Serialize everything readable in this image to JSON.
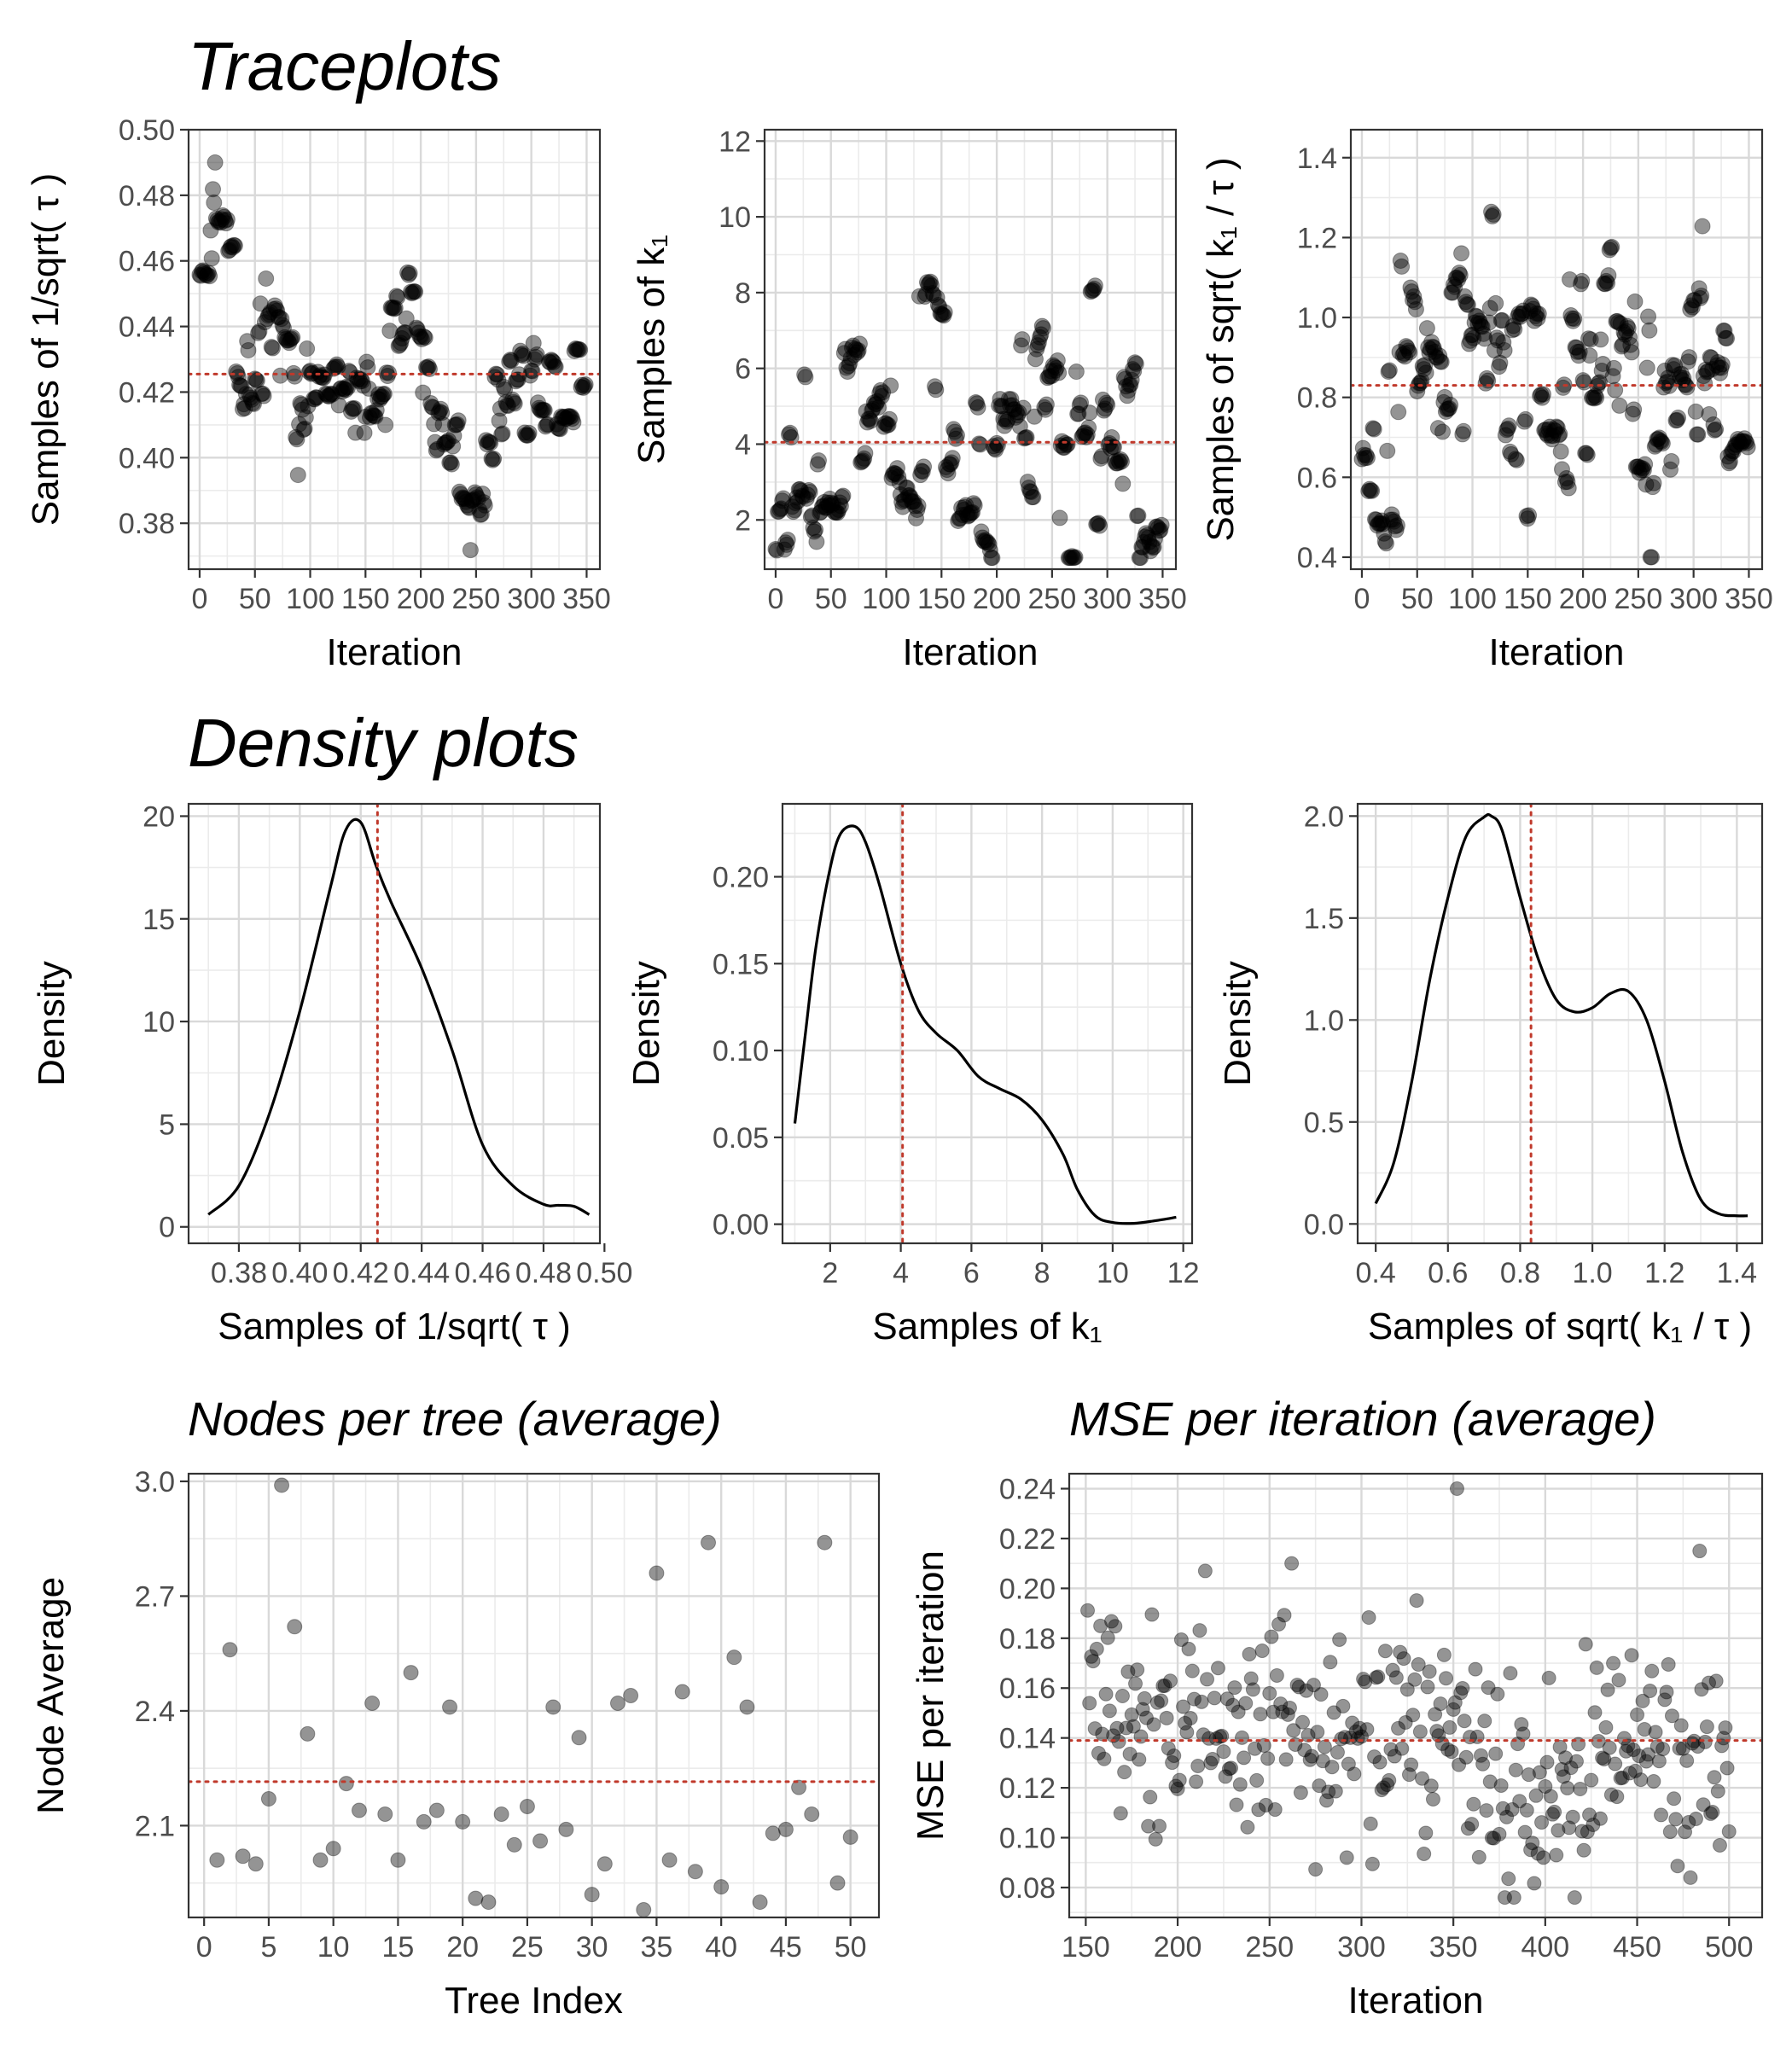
{
  "sections": {
    "traceplots": "Traceplots",
    "density": "Density plots"
  },
  "colors": {
    "ref_line": "#c0392b",
    "points": "#000000",
    "grid_major": "#d9d9d9",
    "grid_minor": "#ebebeb",
    "panel_border": "#333333"
  },
  "chart_data": [
    {
      "id": "trace1",
      "type": "scatter",
      "subtitle": "",
      "xlabel": "Iteration",
      "ylabel": "Samples of 1/sqrt( τ )",
      "xlim": [
        -10,
        362
      ],
      "ylim": [
        0.366,
        0.5
      ],
      "xticks": [
        0,
        50,
        100,
        150,
        200,
        250,
        300,
        350
      ],
      "xtick_labels": [
        "0",
        "50",
        "100",
        "150",
        "200",
        "250",
        "300",
        "350"
      ],
      "yticks": [
        0.38,
        0.4,
        0.42,
        0.44,
        0.46,
        0.48,
        0.5
      ],
      "ytick_labels": [
        "0.38",
        "0.40",
        "0.42",
        "0.44",
        "0.46",
        "0.48",
        "0.50"
      ],
      "ref_y": 0.4255,
      "series_gen": {
        "n": 350,
        "seed": 11,
        "anchors": [
          [
            0,
            0.458
          ],
          [
            10,
            0.47
          ],
          [
            15,
            0.488
          ],
          [
            25,
            0.465
          ],
          [
            35,
            0.43
          ],
          [
            50,
            0.424
          ],
          [
            70,
            0.447
          ],
          [
            90,
            0.41
          ],
          [
            110,
            0.432
          ],
          [
            130,
            0.425
          ],
          [
            150,
            0.415
          ],
          [
            170,
            0.43
          ],
          [
            190,
            0.452
          ],
          [
            210,
            0.404
          ],
          [
            230,
            0.408
          ],
          [
            245,
            0.38
          ],
          [
            260,
            0.398
          ],
          [
            280,
            0.424
          ],
          [
            300,
            0.427
          ],
          [
            330,
            0.412
          ],
          [
            350,
            0.425
          ]
        ],
        "noise": 0.008,
        "hold": 0.65,
        "min": 0.37,
        "max": 0.495
      }
    },
    {
      "id": "trace2",
      "type": "scatter",
      "xlabel": "Iteration",
      "ylabel": "Samples of k₁",
      "xlim": [
        -10,
        362
      ],
      "ylim": [
        0.7,
        12.3
      ],
      "xticks": [
        0,
        50,
        100,
        150,
        200,
        250,
        300,
        350
      ],
      "xtick_labels": [
        "0",
        "50",
        "100",
        "150",
        "200",
        "250",
        "300",
        "350"
      ],
      "yticks": [
        2,
        4,
        6,
        8,
        10,
        12
      ],
      "ytick_labels": [
        "2",
        "4",
        "6",
        "8",
        "10",
        "12"
      ],
      "ref_y": 4.05,
      "series_gen": {
        "n": 350,
        "seed": 23,
        "anchors": [
          [
            0,
            3
          ],
          [
            20,
            1.5
          ],
          [
            40,
            4.2
          ],
          [
            60,
            6
          ],
          [
            80,
            3.8
          ],
          [
            100,
            5.5
          ],
          [
            120,
            4
          ],
          [
            140,
            5.2
          ],
          [
            160,
            3
          ],
          [
            180,
            2.6
          ],
          [
            200,
            3.5
          ],
          [
            220,
            4.6
          ],
          [
            240,
            5.2
          ],
          [
            260,
            3
          ],
          [
            280,
            4.5
          ],
          [
            300,
            3.5
          ],
          [
            320,
            3.5
          ],
          [
            350,
            2.8
          ]
        ],
        "noise": 1.6,
        "hold": 0.8,
        "min": 1.0,
        "max": 11.8
      }
    },
    {
      "id": "trace3",
      "type": "scatter",
      "xlabel": "Iteration",
      "ylabel": "Samples of sqrt( k₁ / τ )",
      "xlim": [
        -10,
        362
      ],
      "ylim": [
        0.37,
        1.47
      ],
      "xticks": [
        0,
        50,
        100,
        150,
        200,
        250,
        300,
        350
      ],
      "xtick_labels": [
        "0",
        "50",
        "100",
        "150",
        "200",
        "250",
        "300",
        "350"
      ],
      "yticks": [
        0.4,
        0.6,
        0.8,
        1.0,
        1.2,
        1.4
      ],
      "ytick_labels": [
        "0.4",
        "0.6",
        "0.8",
        "1.0",
        "1.2",
        "1.4"
      ],
      "ref_y": 0.83,
      "series_gen": {
        "n": 350,
        "seed": 37,
        "anchors": [
          [
            0,
            0.8
          ],
          [
            20,
            0.6
          ],
          [
            40,
            1.05
          ],
          [
            60,
            0.7
          ],
          [
            80,
            1.05
          ],
          [
            100,
            0.85
          ],
          [
            120,
            1.0
          ],
          [
            140,
            0.75
          ],
          [
            160,
            0.85
          ],
          [
            180,
            0.7
          ],
          [
            200,
            0.85
          ],
          [
            220,
            0.95
          ],
          [
            240,
            1.0
          ],
          [
            260,
            0.7
          ],
          [
            280,
            0.8
          ],
          [
            300,
            0.95
          ],
          [
            320,
            0.85
          ],
          [
            340,
            0.7
          ],
          [
            350,
            0.75
          ]
        ],
        "noise": 0.14,
        "hold": 0.7,
        "min": 0.4,
        "max": 1.42
      }
    },
    {
      "id": "dens1",
      "type": "line",
      "xlabel": "Samples of 1/sqrt( τ )",
      "ylabel": "Density",
      "xlim": [
        0.3635,
        0.4985
      ],
      "ylim": [
        -0.8,
        20.6
      ],
      "xticks": [
        0.38,
        0.4,
        0.42,
        0.44,
        0.46,
        0.48,
        0.5
      ],
      "xtick_labels": [
        "0.38",
        "0.40",
        "0.42",
        "0.44",
        "0.46",
        "0.48",
        "0.50"
      ],
      "yticks": [
        0,
        5,
        10,
        15,
        20
      ],
      "ytick_labels": [
        "0",
        "5",
        "10",
        "15",
        "20"
      ],
      "ref_x": 0.4255,
      "x": [
        0.37,
        0.38,
        0.39,
        0.4,
        0.41,
        0.415,
        0.42,
        0.425,
        0.43,
        0.44,
        0.45,
        0.46,
        0.47,
        0.48,
        0.485,
        0.49,
        0.495
      ],
      "y": [
        0.6,
        2.0,
        5.5,
        10.5,
        16.5,
        19.3,
        19.7,
        17.6,
        15.8,
        12.6,
        8.6,
        4.0,
        2.0,
        1.1,
        1.05,
        1.0,
        0.6
      ]
    },
    {
      "id": "dens2",
      "type": "line",
      "xlabel": "Samples of  k₁",
      "ylabel": "Density",
      "xlim": [
        0.65,
        12.25
      ],
      "ylim": [
        -0.011,
        0.242
      ],
      "xticks": [
        2,
        4,
        6,
        8,
        10,
        12
      ],
      "xtick_labels": [
        "2",
        "4",
        "6",
        "8",
        "10",
        "12"
      ],
      "yticks": [
        0,
        0.05,
        0.1,
        0.15,
        0.2
      ],
      "ytick_labels": [
        "0.00",
        "0.05",
        "0.10",
        "0.15",
        "0.20"
      ],
      "ref_x": 4.05,
      "x": [
        1.0,
        1.3,
        1.6,
        2.0,
        2.3,
        2.7,
        3.0,
        3.4,
        4.0,
        4.5,
        5.0,
        5.6,
        6.2,
        6.8,
        7.4,
        8.0,
        8.6,
        9.0,
        9.5,
        10.0,
        10.6,
        11.2,
        11.8
      ],
      "y": [
        0.058,
        0.11,
        0.16,
        0.205,
        0.225,
        0.229,
        0.22,
        0.195,
        0.15,
        0.123,
        0.11,
        0.1,
        0.085,
        0.078,
        0.072,
        0.06,
        0.04,
        0.02,
        0.005,
        0.001,
        0.0005,
        0.002,
        0.004
      ]
    },
    {
      "id": "dens3",
      "type": "line",
      "xlabel": "Samples of sqrt( k₁ / τ )",
      "ylabel": "Density",
      "xlim": [
        0.35,
        1.47
      ],
      "ylim": [
        -0.095,
        2.06
      ],
      "xticks": [
        0.4,
        0.6,
        0.8,
        1.0,
        1.2,
        1.4
      ],
      "xtick_labels": [
        "0.4",
        "0.6",
        "0.8",
        "1.0",
        "1.2",
        "1.4"
      ],
      "yticks": [
        0,
        0.5,
        1.0,
        1.5,
        2.0
      ],
      "ytick_labels": [
        "0.0",
        "0.5",
        "1.0",
        "1.5",
        "2.0"
      ],
      "ref_x": 0.83,
      "x": [
        0.4,
        0.45,
        0.5,
        0.55,
        0.6,
        0.65,
        0.7,
        0.72,
        0.75,
        0.8,
        0.85,
        0.9,
        0.95,
        1.0,
        1.05,
        1.1,
        1.15,
        1.2,
        1.25,
        1.3,
        1.35,
        1.4,
        1.43
      ],
      "y": [
        0.1,
        0.3,
        0.7,
        1.2,
        1.6,
        1.9,
        1.995,
        2.0,
        1.93,
        1.6,
        1.3,
        1.1,
        1.04,
        1.06,
        1.13,
        1.14,
        1.0,
        0.7,
        0.35,
        0.12,
        0.05,
        0.04,
        0.04
      ]
    },
    {
      "id": "nodes",
      "type": "scatter",
      "title": "Nodes per tree (average)",
      "xlabel": "Tree Index",
      "ylabel": "Node Average",
      "xlim": [
        -1.2,
        52.2
      ],
      "ylim": [
        1.86,
        3.02
      ],
      "xticks": [
        0,
        5,
        10,
        15,
        20,
        25,
        30,
        35,
        40,
        45,
        50
      ],
      "xtick_labels": [
        "0",
        "5",
        "10",
        "15",
        "20",
        "25",
        "30",
        "35",
        "40",
        "45",
        "50"
      ],
      "yticks": [
        2.1,
        2.4,
        2.7,
        3.0
      ],
      "ytick_labels": [
        "2.1",
        "2.4",
        "2.7",
        "3.0"
      ],
      "ref_y": 2.215,
      "x": [
        1,
        2,
        3,
        4,
        5,
        6,
        7,
        8,
        9,
        10,
        11,
        12,
        13,
        14,
        15,
        16,
        17,
        18,
        19,
        20,
        21,
        22,
        23,
        24,
        25,
        26,
        27,
        28,
        29,
        30,
        31,
        32,
        33,
        34,
        35,
        36,
        37,
        38,
        39,
        40,
        41,
        42,
        43,
        44,
        45,
        46,
        47,
        48,
        49,
        50
      ],
      "y": [
        2.01,
        2.56,
        2.02,
        2.0,
        2.17,
        2.99,
        2.62,
        2.34,
        2.01,
        2.04,
        2.21,
        2.14,
        2.42,
        2.13,
        2.01,
        2.5,
        2.11,
        2.14,
        2.41,
        2.11,
        1.91,
        1.9,
        2.13,
        2.05,
        2.15,
        2.06,
        2.41,
        2.09,
        2.33,
        1.92,
        2.0,
        2.42,
        2.44,
        1.88,
        2.76,
        2.01,
        2.45,
        1.98,
        2.84,
        1.94,
        2.54,
        2.41,
        1.9,
        2.08,
        2.09,
        2.2,
        2.13,
        2.84,
        1.95,
        2.07
      ]
    },
    {
      "id": "mse",
      "type": "scatter",
      "title": "MSE per iteration (average)",
      "xlabel": "Iteration",
      "ylabel": "MSE per iteration",
      "xlim": [
        141,
        518
      ],
      "ylim": [
        0.068,
        0.246
      ],
      "xticks": [
        150,
        200,
        250,
        300,
        350,
        400,
        450,
        500
      ],
      "xtick_labels": [
        "150",
        "200",
        "250",
        "300",
        "350",
        "400",
        "450",
        "500"
      ],
      "yticks": [
        0.08,
        0.1,
        0.12,
        0.14,
        0.16,
        0.18,
        0.2,
        0.22,
        0.24
      ],
      "ytick_labels": [
        "0.08",
        "0.10",
        "0.12",
        "0.14",
        "0.16",
        "0.18",
        "0.20",
        "0.22",
        "0.24"
      ],
      "ref_y": 0.139,
      "series_gen": {
        "n": 350,
        "x0": 151,
        "seed": 53,
        "anchors": [
          [
            151,
            0.16
          ],
          [
            180,
            0.15
          ],
          [
            200,
            0.14
          ],
          [
            230,
            0.14
          ],
          [
            260,
            0.145
          ],
          [
            290,
            0.14
          ],
          [
            320,
            0.15
          ],
          [
            350,
            0.145
          ],
          [
            370,
            0.125
          ],
          [
            390,
            0.11
          ],
          [
            410,
            0.115
          ],
          [
            430,
            0.13
          ],
          [
            450,
            0.14
          ],
          [
            470,
            0.125
          ],
          [
            500,
            0.13
          ]
        ],
        "noise": 0.022,
        "hold": 0.0,
        "min": 0.076,
        "max": 0.24,
        "fixed": [
          [
            352,
            0.24
          ],
          [
            484,
            0.215
          ],
          [
            383,
            0.076
          ],
          [
            292,
            0.092
          ],
          [
            215,
            0.207
          ],
          [
            262,
            0.21
          ]
        ]
      }
    }
  ]
}
